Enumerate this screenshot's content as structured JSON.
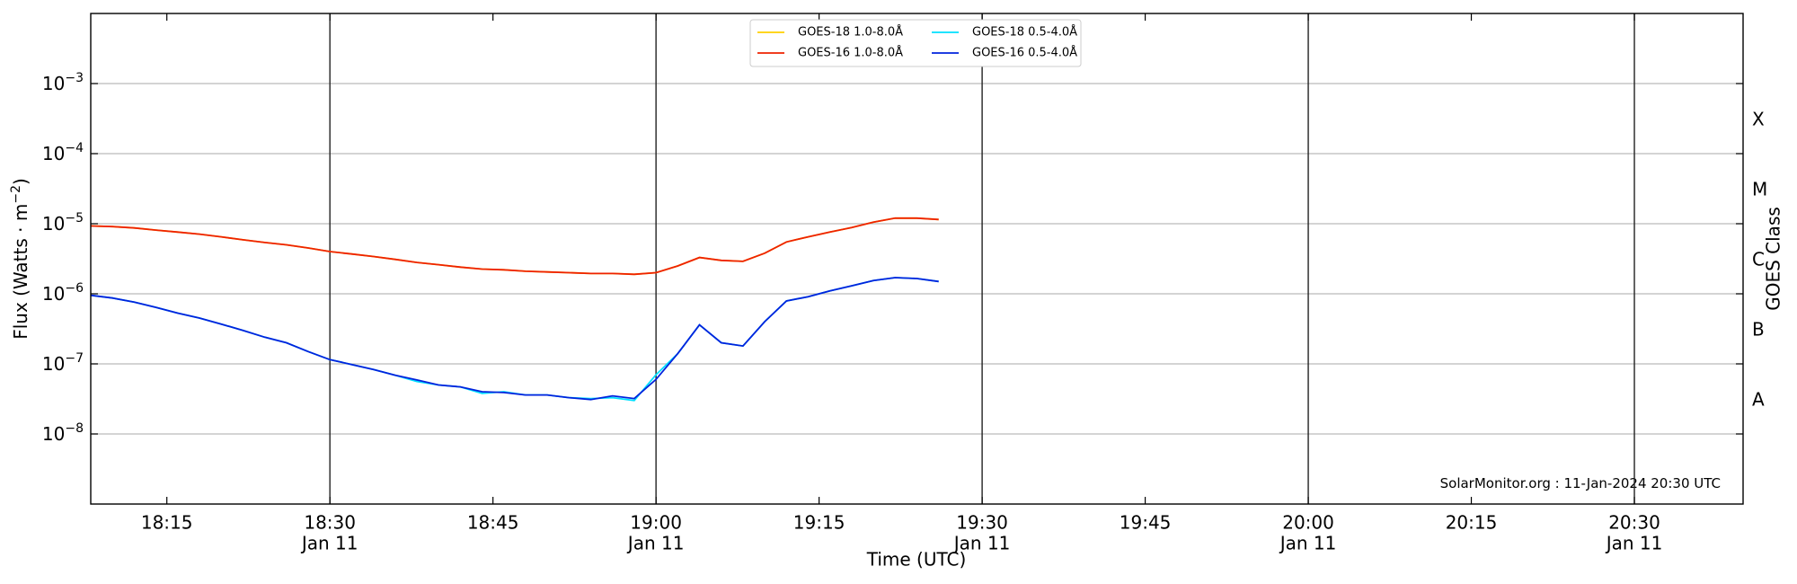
{
  "chart_data": {
    "type": "line",
    "ylabel": [
      "Flux (Watts · m",
      "−2",
      ")"
    ],
    "xlabel": "Time (UTC)",
    "y2label": "GOES Class",
    "annotation": "SolarMonitor.org : 11-Jan-2024 20:30 UTC",
    "log_y": true,
    "grid": true,
    "legend_loc": "upper center",
    "xlim": [
      "18:08",
      "20:40"
    ],
    "xticks": [
      "18:15",
      {
        "value": "18:30",
        "label": [
          "18:30",
          "Jan 11"
        ]
      },
      "18:45",
      {
        "value": "19:00",
        "label": [
          "19:00",
          "Jan 11"
        ]
      },
      "19:15",
      {
        "value": "19:30",
        "label": [
          "19:30",
          "Jan 11"
        ]
      },
      "19:45",
      {
        "value": "20:00",
        "label": [
          "20:00",
          "Jan 11"
        ]
      },
      "20:15",
      {
        "value": "20:30",
        "label": [
          "20:30",
          "Jan 11"
        ]
      }
    ],
    "ylim": [
      1e-09,
      0.01
    ],
    "yticks": [
      {
        "value": 1e-08,
        "label": [
          "10",
          "−8"
        ]
      },
      {
        "value": 1e-07,
        "label": [
          "10",
          "−7"
        ]
      },
      {
        "value": 1e-06,
        "label": [
          "10",
          "−6"
        ]
      },
      {
        "value": 1e-05,
        "label": [
          "10",
          "−5"
        ]
      },
      {
        "value": 0.0001,
        "label": [
          "10",
          "−4"
        ]
      },
      {
        "value": 0.001,
        "label": [
          "10",
          "−3"
        ]
      }
    ],
    "y2lim": [
      1e-09,
      0.01
    ],
    "y2ticks": [
      {
        "value": 3e-08,
        "label": "A"
      },
      {
        "value": 3e-07,
        "label": "B"
      },
      {
        "value": 3e-06,
        "label": "C"
      },
      {
        "value": 3e-05,
        "label": "M"
      },
      {
        "value": 0.0003,
        "label": "X"
      }
    ],
    "x": [
      "18:08",
      "18:10",
      "18:12",
      "18:14",
      "18:16",
      "18:18",
      "18:20",
      "18:22",
      "18:24",
      "18:26",
      "18:28",
      "18:30",
      "18:32",
      "18:34",
      "18:36",
      "18:38",
      "18:40",
      "18:42",
      "18:44",
      "18:46",
      "18:48",
      "18:50",
      "18:52",
      "18:54",
      "18:56",
      "18:58",
      "19:00",
      "19:02",
      "19:04",
      "19:06",
      "19:08",
      "19:10",
      "19:12",
      "19:14",
      "19:16",
      "19:18",
      "19:20",
      "19:22",
      "19:24",
      "19:26"
    ],
    "series": [
      {
        "name": "GOES-18 1.0-8.0Å",
        "color": "#ffd000",
        "values": [
          9.3e-06,
          9.1e-06,
          8.7e-06,
          8.1e-06,
          7.6e-06,
          7.1e-06,
          6.5e-06,
          5.9e-06,
          5.4e-06,
          5e-06,
          4.5e-06,
          4e-06,
          3.7e-06,
          3.4e-06,
          3.1e-06,
          2.8e-06,
          2.6e-06,
          2.4e-06,
          2.25e-06,
          2.2e-06,
          2.1e-06,
          2.05e-06,
          2e-06,
          1.95e-06,
          1.95e-06,
          1.9e-06,
          2e-06,
          2.5e-06,
          3.3e-06,
          3e-06,
          2.9e-06,
          3.8e-06,
          5.5e-06,
          6.5e-06,
          7.6e-06,
          8.8e-06,
          1.05e-05,
          1.2e-05,
          1.2e-05,
          1.15e-05
        ]
      },
      {
        "name": "GOES-16 1.0-8.0Å",
        "color": "#ee2200",
        "values": [
          9.3e-06,
          9.1e-06,
          8.7e-06,
          8.1e-06,
          7.6e-06,
          7.1e-06,
          6.5e-06,
          5.9e-06,
          5.4e-06,
          5e-06,
          4.5e-06,
          4e-06,
          3.7e-06,
          3.4e-06,
          3.1e-06,
          2.8e-06,
          2.6e-06,
          2.4e-06,
          2.25e-06,
          2.2e-06,
          2.1e-06,
          2.05e-06,
          2e-06,
          1.95e-06,
          1.95e-06,
          1.9e-06,
          2e-06,
          2.5e-06,
          3.3e-06,
          3e-06,
          2.9e-06,
          3.8e-06,
          5.5e-06,
          6.5e-06,
          7.6e-06,
          8.8e-06,
          1.05e-05,
          1.2e-05,
          1.2e-05,
          1.15e-05
        ]
      },
      {
        "name": "GOES-18 0.5-4.0Å",
        "color": "#00e0ff",
        "values": [
          9.5e-07,
          8.7e-07,
          7.6e-07,
          6.4e-07,
          5.3e-07,
          4.5e-07,
          3.7e-07,
          3e-07,
          2.4e-07,
          2e-07,
          1.5e-07,
          1.15e-07,
          9.8e-08,
          8.3e-08,
          6.9e-08,
          5.6e-08,
          5e-08,
          4.7e-08,
          3.8e-08,
          4e-08,
          3.6e-08,
          3.6e-08,
          3.3e-08,
          3.2e-08,
          3.3e-08,
          3e-08,
          7e-08,
          1.4e-07,
          3.6e-07,
          2e-07,
          1.8e-07,
          4e-07,
          7.9e-07,
          9.1e-07,
          1.1e-06,
          1.3e-06,
          1.55e-06,
          1.7e-06,
          1.65e-06,
          1.5e-06
        ]
      },
      {
        "name": "GOES-16 0.5-4.0Å",
        "color": "#0022dd",
        "values": [
          9.5e-07,
          8.7e-07,
          7.6e-07,
          6.4e-07,
          5.3e-07,
          4.5e-07,
          3.7e-07,
          3e-07,
          2.4e-07,
          2e-07,
          1.5e-07,
          1.15e-07,
          9.8e-08,
          8.3e-08,
          6.9e-08,
          5.9e-08,
          5e-08,
          4.7e-08,
          4e-08,
          3.9e-08,
          3.6e-08,
          3.6e-08,
          3.3e-08,
          3.1e-08,
          3.5e-08,
          3.2e-08,
          6e-08,
          1.4e-07,
          3.6e-07,
          2e-07,
          1.8e-07,
          4e-07,
          7.9e-07,
          9.1e-07,
          1.1e-06,
          1.3e-06,
          1.55e-06,
          1.7e-06,
          1.65e-06,
          1.5e-06
        ]
      }
    ]
  }
}
